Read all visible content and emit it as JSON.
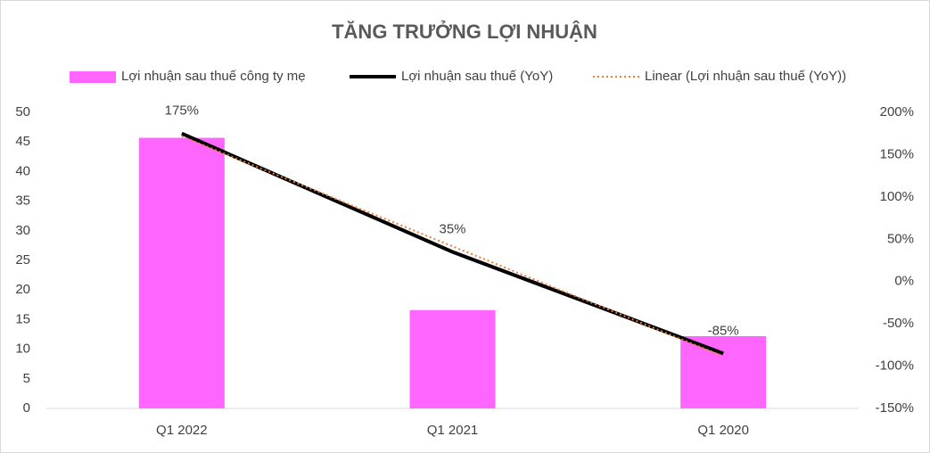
{
  "chart_data": {
    "type": "combo",
    "title": "TĂNG TRƯỞNG LỢI NHUẬN",
    "categories": [
      "Q1 2022",
      "Q1 2021",
      "Q1 2020"
    ],
    "series": [
      {
        "name": "Lợi nhuận sau thuế công ty mẹ",
        "type": "bar",
        "color": "#ff66ff",
        "values": [
          45.7,
          16.6,
          12.2
        ]
      },
      {
        "name": "Lợi nhuận sau thuế (YoY)",
        "type": "line",
        "axis": "y2",
        "color": "#000000",
        "values": [
          175,
          35,
          -85
        ],
        "value_labels": [
          "175%",
          "35%",
          "-85%"
        ]
      },
      {
        "name": "Linear (Lợi nhuận sau thuế (YoY))",
        "type": "line",
        "axis": "y2",
        "color": "#ed7d31",
        "dashed": true,
        "values": [
          171.67,
          41.67,
          -88.33
        ]
      }
    ],
    "ylim": [
      0,
      50
    ],
    "yticks": [
      0,
      5,
      10,
      15,
      20,
      25,
      30,
      35,
      40,
      45,
      50
    ],
    "y2lim": [
      -150,
      200
    ],
    "y2ticks": [
      {
        "value": -150,
        "label": "-150%"
      },
      {
        "value": -100,
        "label": "-100%"
      },
      {
        "value": -50,
        "label": "-50%"
      },
      {
        "value": 0,
        "label": "0%"
      },
      {
        "value": 50,
        "label": "50%"
      },
      {
        "value": 100,
        "label": "100%"
      },
      {
        "value": 150,
        "label": "150%"
      },
      {
        "value": 200,
        "label": "200%"
      }
    ],
    "legend": "top"
  }
}
